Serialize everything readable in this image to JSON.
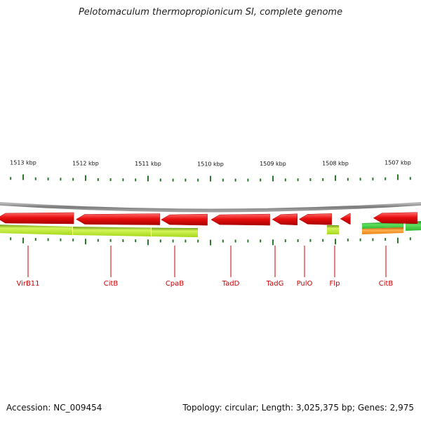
{
  "title": "Pelotomaculum thermopropionicum SI, complete genome",
  "footer": {
    "accession": "Accession: NC_009454",
    "summary": "Topology: circular; Length: 3,025,375 bp; Genes: 2,975"
  },
  "colors": {
    "backbone": "#8a8a8a",
    "gene_red": "#e01010",
    "track_lime": "#b5e61d",
    "track_green": "#3cc43c",
    "track_orange": "#f08c1e",
    "tick": "#2a7a2a",
    "label": "#cc0000"
  },
  "scale_labels": [
    {
      "text": "1513 kbp",
      "kbp": 1513
    },
    {
      "text": "1512 kbp",
      "kbp": 1512
    },
    {
      "text": "1511 kbp",
      "kbp": 1511
    },
    {
      "text": "1510 kbp",
      "kbp": 1510
    },
    {
      "text": "1509 kbp",
      "kbp": 1509
    },
    {
      "text": "1508 kbp",
      "kbp": 1508
    },
    {
      "text": "1507 kbp",
      "kbp": 1507
    }
  ],
  "genes": [
    {
      "name": "VirB11",
      "start_kbp": 1513.42,
      "end_kbp": 1512.19
    },
    {
      "name": "CitB",
      "start_kbp": 1512.15,
      "end_kbp": 1510.81
    },
    {
      "name": "CpaB",
      "start_kbp": 1510.79,
      "end_kbp": 1510.05
    },
    {
      "name": "TadD",
      "start_kbp": 1509.99,
      "end_kbp": 1509.05
    },
    {
      "name": "TadG",
      "start_kbp": 1509.01,
      "end_kbp": 1508.61
    },
    {
      "name": "PulO",
      "start_kbp": 1508.58,
      "end_kbp": 1508.06
    },
    {
      "name": "Flp",
      "start_kbp": 1507.92,
      "end_kbp": 1507.76
    },
    {
      "name": "CitB",
      "start_kbp": 1507.39,
      "end_kbp": 1506.69
    }
  ],
  "gene_labels": [
    {
      "text": "VirB11"
    },
    {
      "text": "CitB"
    },
    {
      "text": "CpaB"
    },
    {
      "text": "TadD"
    },
    {
      "text": "TadG"
    },
    {
      "text": "PulO"
    },
    {
      "text": "Flp"
    },
    {
      "text": "CitB"
    }
  ]
}
